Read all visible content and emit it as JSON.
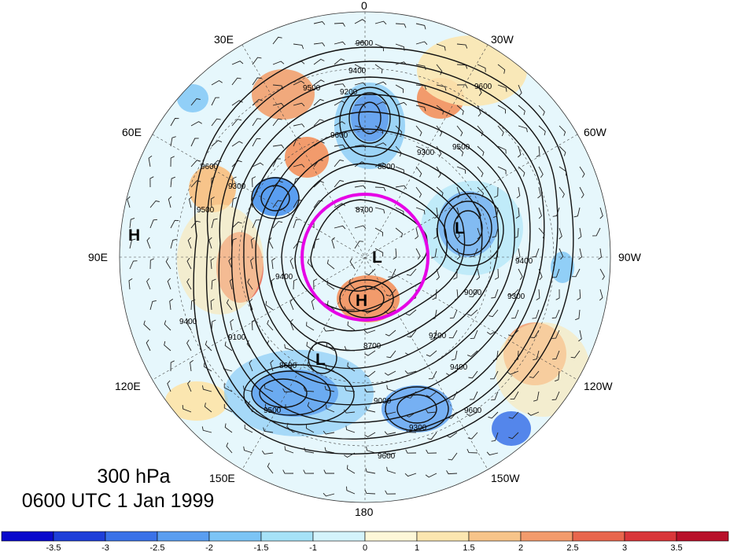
{
  "title": {
    "level": "300 hPa",
    "time": "0600 UTC 1 Jan 1999"
  },
  "longitude_labels": {
    "lon_0": "0",
    "lon_30w": "30W",
    "lon_60w": "60W",
    "lon_90w": "90W",
    "lon_120w": "120W",
    "lon_150w": "150W",
    "lon_180": "180",
    "lon_150e": "150E",
    "lon_120e": "120E",
    "lon_90e": "90E",
    "lon_60e": "60E",
    "lon_30e": "30E"
  },
  "contour_labels": {
    "c1": "9600",
    "c2": "9400",
    "c3": "9200",
    "c4": "9500",
    "c5": "9600",
    "c6": "9300",
    "c7": "9500",
    "c8": "8700",
    "c9": "9400",
    "c10": "9300",
    "c11": "9000",
    "c12": "8700",
    "c13": "9200",
    "c14": "9400",
    "c15": "9600",
    "c16": "9300",
    "c17": "9500",
    "c18": "9600",
    "c19": "9000",
    "c20": "9400",
    "c21": "9100",
    "c22": "8600",
    "c23": "9500",
    "c24": "9600",
    "c25": "9300",
    "c26": "9400",
    "c27": "9600",
    "c28": "8800"
  },
  "pressure_centers": {
    "h_left": "H",
    "h_center": "H",
    "l_center": "L",
    "l_right": "L",
    "l_lower": "L"
  },
  "highlight_circle_color": "#e600e6",
  "colorbar": {
    "colors": [
      "#0a0acc",
      "#1e3fd9",
      "#3a72e8",
      "#5a9ef0",
      "#7cc4f5",
      "#a6e2f7",
      "#d4f3fb",
      "#fdf7d8",
      "#fbe6b0",
      "#f7c48a",
      "#f29b6c",
      "#e8664d",
      "#d9363a",
      "#b8102a"
    ],
    "tick_labels": [
      "-3.5",
      "-3",
      "-2.5",
      "-2",
      "-1.5",
      "-1",
      "0",
      "1",
      "1.5",
      "2",
      "2.5",
      "3",
      "3.5"
    ]
  }
}
